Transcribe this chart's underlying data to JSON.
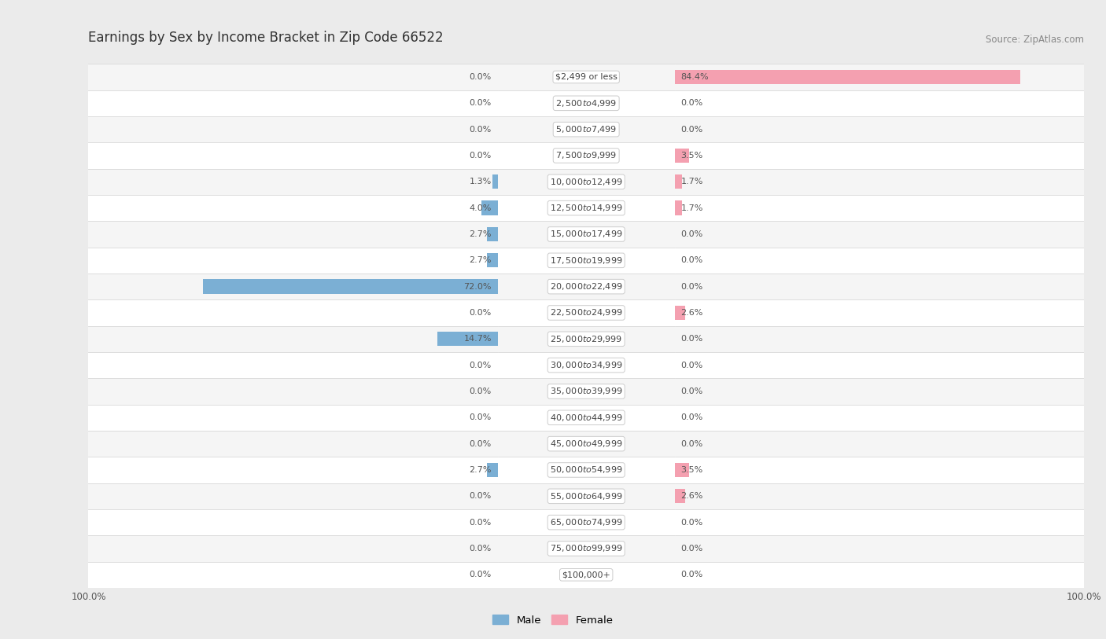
{
  "title": "Earnings by Sex by Income Bracket in Zip Code 66522",
  "source": "Source: ZipAtlas.com",
  "categories": [
    "$2,499 or less",
    "$2,500 to $4,999",
    "$5,000 to $7,499",
    "$7,500 to $9,999",
    "$10,000 to $12,499",
    "$12,500 to $14,999",
    "$15,000 to $17,499",
    "$17,500 to $19,999",
    "$20,000 to $22,499",
    "$22,500 to $24,999",
    "$25,000 to $29,999",
    "$30,000 to $34,999",
    "$35,000 to $39,999",
    "$40,000 to $44,999",
    "$45,000 to $49,999",
    "$50,000 to $54,999",
    "$55,000 to $64,999",
    "$65,000 to $74,999",
    "$75,000 to $99,999",
    "$100,000+"
  ],
  "male_values": [
    0.0,
    0.0,
    0.0,
    0.0,
    1.3,
    4.0,
    2.7,
    2.7,
    72.0,
    0.0,
    14.7,
    0.0,
    0.0,
    0.0,
    0.0,
    2.7,
    0.0,
    0.0,
    0.0,
    0.0
  ],
  "female_values": [
    84.4,
    0.0,
    0.0,
    3.5,
    1.7,
    1.7,
    0.0,
    0.0,
    0.0,
    2.6,
    0.0,
    0.0,
    0.0,
    0.0,
    0.0,
    3.5,
    2.6,
    0.0,
    0.0,
    0.0
  ],
  "male_color": "#7bafd4",
  "female_color": "#f4a0b0",
  "label_color": "#555555",
  "bg_color": "#ebebeb",
  "row_bg_light": "#f5f5f5",
  "row_bg_white": "#ffffff",
  "row_border_color": "#d8d8d8",
  "max_val": 100.0,
  "bar_height": 0.55,
  "title_fontsize": 12,
  "label_fontsize": 8,
  "category_fontsize": 8,
  "source_fontsize": 8.5
}
